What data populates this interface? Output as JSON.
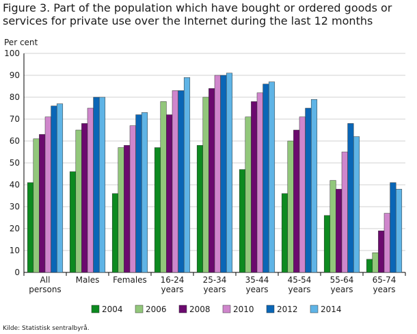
{
  "title_lines": [
    "Figure 3. Part of the population which have bought or ordered goods or",
    "services for private use over the Internet during the last 12 months"
  ],
  "source": "Kilde: Statistisk sentralbyrå.",
  "colors": {
    "2004": "#0d8a20",
    "2006": "#92c77b",
    "2008": "#6b0a6e",
    "2010": "#cf86cc",
    "2012": "#0a66b6",
    "2014": "#5fb4e6"
  },
  "chart_data": {
    "type": "bar",
    "title": "Figure 3. Part of the population which have bought or ordered goods or services for private use over the Internet during the last 12 months",
    "ylabel": "Per cent",
    "xlabel": "",
    "ylim": [
      0,
      100
    ],
    "yticks": [
      0,
      10,
      20,
      30,
      40,
      50,
      60,
      70,
      80,
      90,
      100
    ],
    "grid": true,
    "legend_position": "bottom",
    "categories": [
      [
        "All",
        "persons"
      ],
      [
        "Males"
      ],
      [
        "Females"
      ],
      [
        "16-24",
        "years"
      ],
      [
        "25-34",
        "years"
      ],
      [
        "35-44",
        "years"
      ],
      [
        "45-54",
        "years"
      ],
      [
        "55-64",
        "years"
      ],
      [
        "65-74",
        "years"
      ]
    ],
    "series": [
      {
        "name": "2004",
        "values": [
          41,
          46,
          36,
          57,
          58,
          47,
          36,
          26,
          6
        ]
      },
      {
        "name": "2006",
        "values": [
          61,
          65,
          57,
          78,
          80,
          71,
          60,
          42,
          9
        ]
      },
      {
        "name": "2008",
        "values": [
          63,
          68,
          58,
          72,
          84,
          78,
          65,
          38,
          19
        ]
      },
      {
        "name": "2010",
        "values": [
          71,
          75,
          67,
          83,
          90,
          82,
          71,
          55,
          27
        ]
      },
      {
        "name": "2012",
        "values": [
          76,
          80,
          72,
          83,
          90,
          86,
          75,
          68,
          41
        ]
      },
      {
        "name": "2014",
        "values": [
          77,
          80,
          73,
          89,
          91,
          87,
          79,
          62,
          38
        ]
      }
    ]
  }
}
